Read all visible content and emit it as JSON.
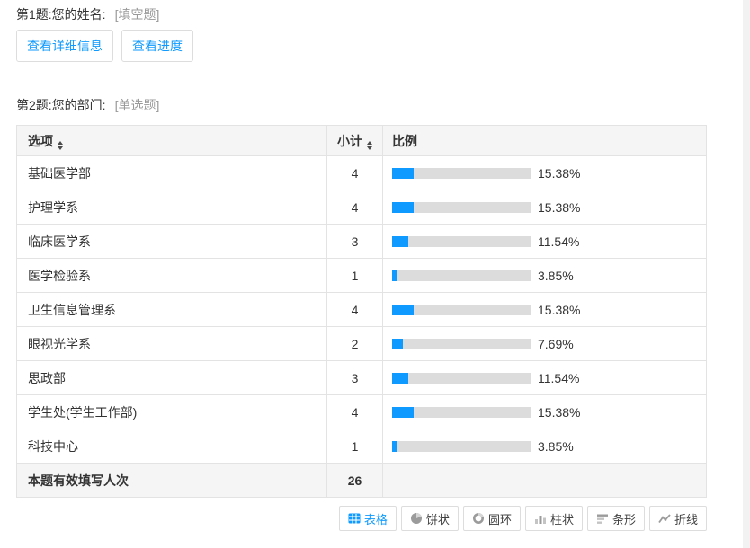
{
  "colors": {
    "accent": "#0F9AFF",
    "bar_track": "#DCDCDC",
    "header_bg": "#F5F5F5",
    "table_border": "#E3E3E3",
    "muted_text": "#999999",
    "icon_gray": "#9B9B9B"
  },
  "question1": {
    "title": "第1题:您的姓名:",
    "type_tag": "[填空题]",
    "detail_button": "查看详细信息",
    "progress_button": "查看进度"
  },
  "question2": {
    "title": "第2题:您的部门:",
    "type_tag": "[单选题]"
  },
  "table": {
    "headers": {
      "option": "选项",
      "count": "小计",
      "ratio": "比例"
    },
    "rows": [
      {
        "option": "基础医学部",
        "count": "4",
        "percent": "15.38%",
        "pct": 15.38
      },
      {
        "option": "护理学系",
        "count": "4",
        "percent": "15.38%",
        "pct": 15.38
      },
      {
        "option": "临床医学系",
        "count": "3",
        "percent": "11.54%",
        "pct": 11.54
      },
      {
        "option": "医学检验系",
        "count": "1",
        "percent": "3.85%",
        "pct": 3.85
      },
      {
        "option": "卫生信息管理系",
        "count": "4",
        "percent": "15.38%",
        "pct": 15.38
      },
      {
        "option": "眼视光学系",
        "count": "2",
        "percent": "7.69%",
        "pct": 7.69
      },
      {
        "option": "思政部",
        "count": "3",
        "percent": "11.54%",
        "pct": 11.54
      },
      {
        "option": "学生处(学生工作部)",
        "count": "4",
        "percent": "15.38%",
        "pct": 15.38
      },
      {
        "option": "科技中心",
        "count": "1",
        "percent": "3.85%",
        "pct": 3.85
      }
    ],
    "footer": {
      "label": "本题有效填写人次",
      "total": "26"
    }
  },
  "chart_buttons": [
    {
      "label": "表格",
      "icon": "table-icon",
      "active": true
    },
    {
      "label": "饼状",
      "icon": "pie-icon",
      "active": false
    },
    {
      "label": "圆环",
      "icon": "donut-icon",
      "active": false
    },
    {
      "label": "柱状",
      "icon": "column-icon",
      "active": false
    },
    {
      "label": "条形",
      "icon": "hbar-icon",
      "active": false
    },
    {
      "label": "折线",
      "icon": "line-icon",
      "active": false
    }
  ]
}
